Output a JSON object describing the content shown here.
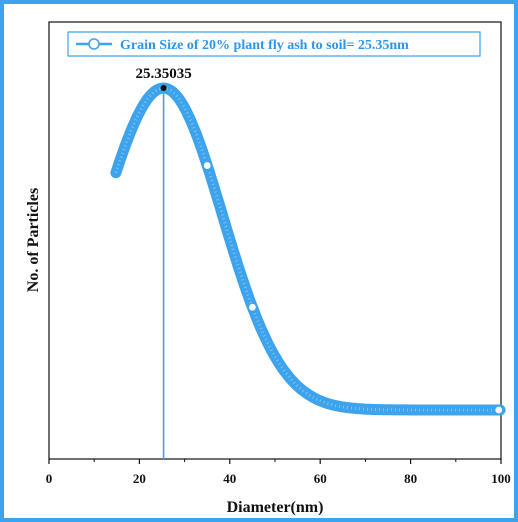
{
  "chart_data": {
    "type": "line",
    "title": "",
    "xlabel": "Diameter(nm)",
    "ylabel": "No. of Particles",
    "xlim": [
      0,
      100
    ],
    "xticks": [
      0,
      20,
      40,
      60,
      80,
      100
    ],
    "xtick_labels": [
      "0",
      "20",
      "40",
      "60",
      "80",
      "100"
    ],
    "yticks_shown": false,
    "grid": false,
    "legend_position": "top",
    "colors": {
      "series": "#3ca3ec",
      "series_dark": "#1f84d8",
      "border": "#3ca3ec",
      "axis": "#111111"
    },
    "series": [
      {
        "name": "Grain Size of 20% plant fly ash to soil= 25.35nm",
        "model": "gaussian",
        "peak_x": 25.35035,
        "x_range": [
          14.8,
          100
        ],
        "description_points": {
          "x": [
            14.8,
            20,
            25.35,
            30,
            35,
            40,
            45,
            50,
            55,
            60,
            65,
            70,
            80,
            90,
            100
          ],
          "y": [
            0.72,
            0.9,
            1.0,
            0.92,
            0.74,
            0.5,
            0.28,
            0.13,
            0.05,
            0.015,
            0.005,
            0.001,
            0,
            0,
            0
          ]
        }
      }
    ],
    "annotations": [
      {
        "text": "25.35035",
        "x": 25.35035,
        "type": "vertical-line-with-label"
      }
    ]
  }
}
